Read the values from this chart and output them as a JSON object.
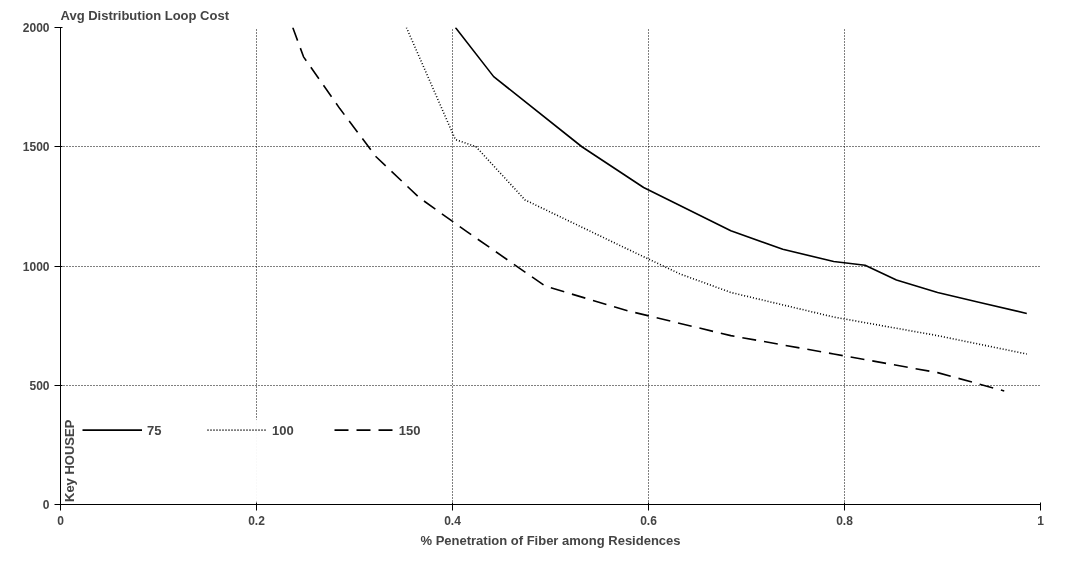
{
  "chart_data": {
    "type": "line",
    "ylabel": "Avg Distribution Loop Cost",
    "xlabel": "% Penetration of Fiber among Residences",
    "legend_title": "Key HOUSEP",
    "legend": "bottom left",
    "grid": true,
    "xlim": [
      0,
      1
    ],
    "ylim": [
      0,
      2000
    ],
    "xticks": [
      0,
      0.2,
      0.4,
      0.6,
      0.8,
      1
    ],
    "yticks": [
      0,
      500,
      1000,
      1500,
      2000
    ],
    "series": [
      {
        "name": "75",
        "color": "#000000",
        "line_style": "solid",
        "x": [
          0.403,
          0.442,
          0.532,
          0.595,
          0.684,
          0.737,
          0.789,
          0.821,
          0.853,
          0.895,
          0.937,
          0.986
        ],
        "values": [
          2000,
          1794,
          1500,
          1329,
          1148,
          1070,
          1019,
          1003,
          941,
          889,
          848,
          801
        ]
      },
      {
        "name": "100",
        "color": "#000000",
        "line_style": "dotted",
        "x": [
          0.353,
          0.403,
          0.424,
          0.474,
          0.579,
          0.632,
          0.684,
          0.789,
          0.895,
          0.986
        ],
        "values": [
          2000,
          1530,
          1500,
          1277,
          1070,
          967,
          889,
          786,
          708,
          631
        ]
      },
      {
        "name": "150",
        "color": "#000000",
        "line_style": "dashed",
        "x": [
          0.237,
          0.248,
          0.285,
          0.322,
          0.366,
          0.415,
          0.495,
          0.579,
          0.684,
          0.789,
          0.895,
          0.963
        ],
        "values": [
          2000,
          1877,
          1660,
          1458,
          1287,
          1143,
          915,
          812,
          708,
          631,
          553,
          476
        ]
      }
    ]
  }
}
